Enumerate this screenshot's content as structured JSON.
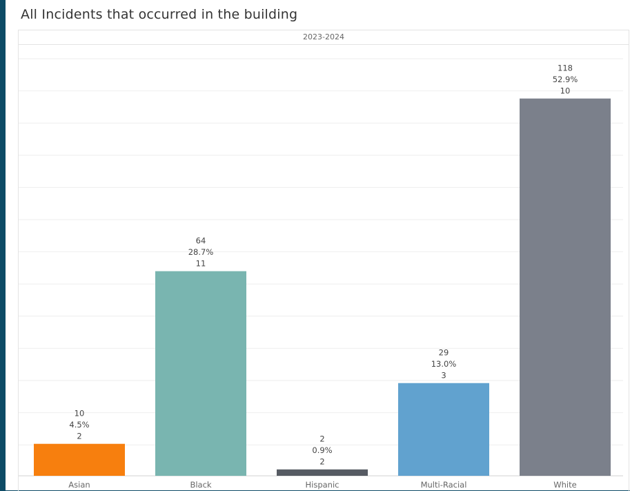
{
  "title": "All Incidents that occurred in the building",
  "chart_data": {
    "type": "bar",
    "column_header": "2023-2024",
    "categories": [
      "Asian",
      "Black",
      "Hispanic",
      "Multi-Racial",
      "White"
    ],
    "values": [
      10,
      64,
      2,
      29,
      118
    ],
    "percent_labels": [
      "4.5%",
      "28.7%",
      "0.9%",
      "13.0%",
      "52.9%"
    ],
    "third_labels": [
      "2",
      "11",
      "2",
      "3",
      "10"
    ],
    "colors": [
      "#f77f0e",
      "#79b5b0",
      "#565b63",
      "#61a2cf",
      "#7b808b"
    ],
    "ylim": [
      0,
      125
    ],
    "grid": true,
    "title": "All Incidents that occurred in the building",
    "xlabel": "",
    "ylabel": ""
  }
}
